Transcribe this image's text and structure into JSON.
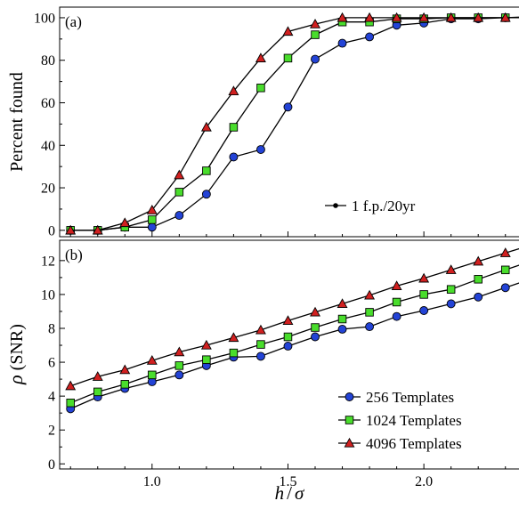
{
  "chart_data": [
    {
      "type": "line",
      "panel_label": "(a)",
      "ylabel": "Percent found",
      "xlabel": "",
      "xlim": [
        0.66,
        2.35
      ],
      "ylim": [
        -3,
        105
      ],
      "xticks": [
        1.0,
        1.5,
        2.0
      ],
      "xtick_labels": [
        "",
        "",
        ""
      ],
      "yticks": [
        0,
        20,
        40,
        60,
        80,
        100
      ],
      "ytick_labels": [
        "0",
        "20",
        "40",
        "60",
        "80",
        "100"
      ],
      "grid": false,
      "legend": {
        "placement": "bottom-right",
        "entries": [
          {
            "label": "1 f.p./20yr",
            "marker": "dot",
            "color": "#000000"
          }
        ]
      },
      "x": [
        0.7,
        0.8,
        0.9,
        1.0,
        1.1,
        1.2,
        1.3,
        1.4,
        1.5,
        1.6,
        1.7,
        1.8,
        1.9,
        2.0,
        2.1,
        2.2,
        2.3
      ],
      "series": [
        {
          "marker": "circle",
          "color": "#2343d6",
          "values": [
            0,
            0,
            1.5,
            1.5,
            7,
            17,
            34.5,
            38,
            58,
            80.5,
            88,
            91,
            96.5,
            97.5,
            99.5,
            99.5,
            100
          ]
        },
        {
          "marker": "square",
          "color": "#49dd2c",
          "values": [
            0,
            0,
            1.5,
            5,
            18,
            28,
            48.5,
            67,
            81,
            92,
            98,
            98,
            99.5,
            99.5,
            100,
            100,
            100
          ]
        },
        {
          "marker": "triangle",
          "color": "#d12020",
          "values": [
            0,
            0,
            3.5,
            9.5,
            26,
            48.5,
            65.5,
            81,
            93.5,
            97,
            100,
            100,
            100,
            100,
            100,
            100,
            100
          ]
        }
      ]
    },
    {
      "type": "line",
      "panel_label": "(b)",
      "ylabel_symbol": "ρ",
      "ylabel_text": "(SNR)",
      "xlabel_h": "h",
      "xlabel_sep": "/",
      "xlabel_sigma": "σ",
      "xlim": [
        0.66,
        2.35
      ],
      "ylim": [
        -0.3,
        13.2
      ],
      "xticks": [
        1.0,
        1.5,
        2.0
      ],
      "xtick_labels": [
        "1.0",
        "1.5",
        "2.0"
      ],
      "yticks": [
        0,
        2,
        4,
        6,
        8,
        10,
        12
      ],
      "ytick_labels": [
        "0",
        "2",
        "4",
        "6",
        "8",
        "10",
        "12"
      ],
      "grid": false,
      "legend": {
        "placement": "bottom-right",
        "entries": [
          {
            "label": "256 Templates",
            "marker": "circle",
            "color": "#2343d6"
          },
          {
            "label": "1024 Templates",
            "marker": "square",
            "color": "#49dd2c"
          },
          {
            "label": "4096 Templates",
            "marker": "triangle",
            "color": "#d12020"
          }
        ]
      },
      "x": [
        0.7,
        0.8,
        0.9,
        1.0,
        1.1,
        1.2,
        1.3,
        1.4,
        1.5,
        1.6,
        1.7,
        1.8,
        1.9,
        2.0,
        2.1,
        2.2,
        2.3
      ],
      "series": [
        {
          "name": "256 Templates",
          "marker": "circle",
          "color": "#2343d6",
          "values": [
            3.25,
            3.95,
            4.45,
            4.85,
            5.25,
            5.8,
            6.3,
            6.35,
            6.95,
            7.5,
            7.95,
            8.1,
            8.7,
            9.05,
            9.45,
            9.85,
            10.4
          ]
        },
        {
          "name": "1024 Templates",
          "marker": "square",
          "color": "#49dd2c",
          "values": [
            3.6,
            4.25,
            4.7,
            5.25,
            5.8,
            6.15,
            6.55,
            7.05,
            7.5,
            8.05,
            8.55,
            8.95,
            9.55,
            10.0,
            10.3,
            10.9,
            11.45
          ]
        },
        {
          "name": "4096 Templates",
          "marker": "triangle",
          "color": "#d12020",
          "values": [
            4.6,
            5.15,
            5.55,
            6.1,
            6.6,
            7.0,
            7.45,
            7.9,
            8.45,
            8.95,
            9.45,
            9.95,
            10.5,
            10.95,
            11.45,
            11.95,
            12.45
          ]
        }
      ]
    }
  ]
}
